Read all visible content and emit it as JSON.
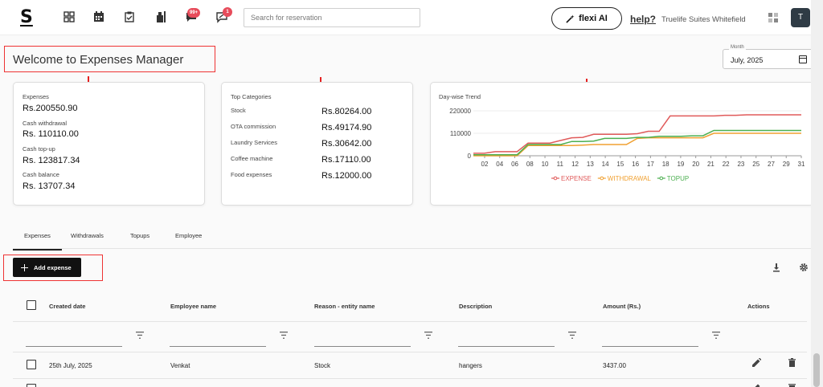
{
  "header": {
    "logo": "S",
    "messages_badge": "99+",
    "notifications_badge": "1",
    "search_placeholder": "Search for reservation",
    "flexi_label": "flexi AI",
    "help_label": "help?",
    "property_name": "Truelife Suites Whitefield",
    "avatar_initial": "T"
  },
  "page": {
    "title": "Welcome to Expenses Manager",
    "month_label": "Month",
    "month_value": "July, 2025"
  },
  "summary": [
    {
      "label": "Expenses",
      "value": "Rs.200550.90"
    },
    {
      "label": "Cash withdrawal",
      "value": "Rs. 110110.00"
    },
    {
      "label": "Cash top-up",
      "value": "Rs. 123817.34"
    },
    {
      "label": "Cash balance",
      "value": "Rs. 13707.34"
    }
  ],
  "top_categories": {
    "title": "Top Categories",
    "items": [
      {
        "label": "Stock",
        "value": "Rs.80264.00"
      },
      {
        "label": "OTA commission",
        "value": "Rs.49174.90"
      },
      {
        "label": "Laundry Services",
        "value": "Rs.30642.00"
      },
      {
        "label": "Coffee machine",
        "value": "Rs.17110.00"
      },
      {
        "label": "Food expenses",
        "value": "Rs.12000.00"
      }
    ]
  },
  "chart_data": {
    "type": "line",
    "title": "Day-wise Trend",
    "x": [
      1,
      2,
      3,
      4,
      5,
      6,
      7,
      8,
      9,
      10,
      11,
      12,
      13,
      14,
      15,
      16,
      17,
      18,
      19,
      20,
      21,
      22,
      23,
      24,
      25,
      26,
      27,
      28,
      29,
      30,
      31
    ],
    "x_tick_labels": [
      "02",
      "04",
      "06",
      "08",
      "10",
      "11",
      "12",
      "13",
      "14",
      "15",
      "16",
      "17",
      "18",
      "19",
      "20",
      "21",
      "22",
      "23",
      "25",
      "27",
      "29",
      "31"
    ],
    "y_tick_labels": [
      "0",
      "110000",
      "220000"
    ],
    "ylim": [
      0,
      220000
    ],
    "legend_position": "bottom",
    "series": [
      {
        "name": "EXPENSE",
        "color": "#e05a5a",
        "values": [
          12000,
          12000,
          20000,
          20000,
          20000,
          62000,
          62000,
          62000,
          75000,
          88000,
          90000,
          105000,
          105000,
          105000,
          105000,
          108000,
          120000,
          120000,
          195000,
          195000,
          195000,
          195000,
          195000,
          198000,
          198000,
          200550,
          200550,
          200550,
          200550,
          200550,
          200550
        ]
      },
      {
        "name": "WITHDRAWAL",
        "color": "#f0a030",
        "values": [
          0,
          0,
          0,
          0,
          0,
          50000,
          50000,
          50000,
          50000,
          50000,
          52000,
          55000,
          55000,
          55000,
          55000,
          85000,
          88000,
          88000,
          88000,
          88000,
          88000,
          88000,
          110110,
          110110,
          110110,
          110110,
          110110,
          110110,
          110110,
          110110,
          110110
        ]
      },
      {
        "name": "TOPUP",
        "color": "#4caf50",
        "values": [
          5000,
          5000,
          5000,
          5000,
          5000,
          55000,
          55000,
          55000,
          55000,
          70000,
          70000,
          72000,
          85000,
          85000,
          85000,
          90000,
          90000,
          95000,
          95000,
          95000,
          98000,
          98000,
          123817,
          123817,
          123817,
          123817,
          123817,
          123817,
          123817,
          123817,
          123817
        ]
      }
    ]
  },
  "tabs": [
    {
      "label": "Expenses",
      "active": true
    },
    {
      "label": "Withdrawals"
    },
    {
      "label": "Topups"
    },
    {
      "label": "Employee"
    }
  ],
  "add_expense_label": "Add expense",
  "table": {
    "columns": [
      "Created date",
      "Employee name",
      "Reason - entity name",
      "Description",
      "Amount (Rs.)",
      "Actions"
    ],
    "rows": [
      {
        "date": "25th July, 2025",
        "employee": "Venkat",
        "reason": "Stock",
        "description": "hangers",
        "amount": "3437.00"
      }
    ]
  }
}
